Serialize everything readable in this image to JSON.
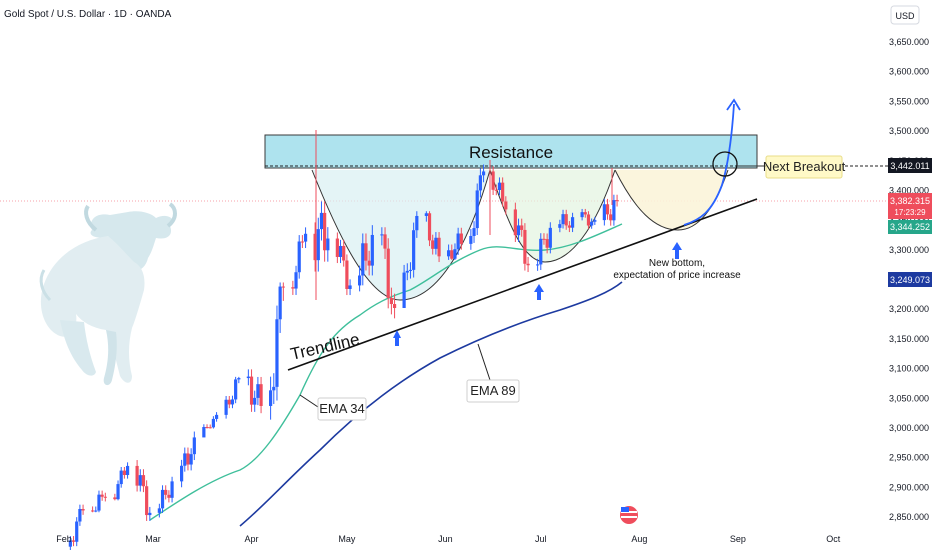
{
  "header": {
    "symbol": "Gold Spot / U.S. Dollar · 1D · OANDA",
    "currency": "USD"
  },
  "colors": {
    "up": "#2962ff",
    "down": "#ef4d5c",
    "ema34": "#3fbf9b",
    "ema89": "#1d3aa0",
    "resistance_fill": "#aee3ee",
    "resistance_stroke": "#3a3a3a",
    "trendline": "#111111",
    "projection": "#2962ff",
    "current_price": "#ef4d5c"
  },
  "chart_data": {
    "type": "line",
    "title": "Gold Spot / U.S. Dollar · 1D · OANDA",
    "xlabel": "",
    "ylabel": "USD",
    "ylim": [
      2830,
      3720
    ],
    "grid": false,
    "x_ticks": [
      "Feb",
      "Mar",
      "Apr",
      "May",
      "Jun",
      "Jul",
      "Aug",
      "Sep",
      "Oct"
    ],
    "y_ticks": [
      2850,
      2900,
      2950,
      3000,
      3050,
      3100,
      3150,
      3200,
      3250,
      3300,
      3350,
      3400,
      3450,
      3500,
      3550,
      3600,
      3650
    ],
    "y_tick_labels": [
      "2,850.000",
      "2,900.000",
      "2,950.000",
      "3,000.000",
      "3,050.000",
      "3,100.000",
      "3,150.000",
      "3,200.000",
      "3,250.000",
      "3,300.000",
      "3,350.000",
      "3,400.000",
      "3,450.000",
      "3,500.000",
      "3,550.000",
      "3,600.000",
      "3,650.000"
    ],
    "candles_weekly_approx": [
      {
        "date": "2025-02-03",
        "open": 2800,
        "high": 2882,
        "low": 2790,
        "close": 2861
      },
      {
        "date": "2025-02-10",
        "open": 2861,
        "high": 2943,
        "low": 2858,
        "close": 2883
      },
      {
        "date": "2025-02-17",
        "open": 2883,
        "high": 2954,
        "low": 2878,
        "close": 2936
      },
      {
        "date": "2025-02-24",
        "open": 2936,
        "high": 2956,
        "low": 2832,
        "close": 2857
      },
      {
        "date": "2025-03-03",
        "open": 2857,
        "high": 2930,
        "low": 2833,
        "close": 2910
      },
      {
        "date": "2025-03-10",
        "open": 2910,
        "high": 3004,
        "low": 2880,
        "close": 2984
      },
      {
        "date": "2025-03-17",
        "open": 2984,
        "high": 3057,
        "low": 2999,
        "close": 3022
      },
      {
        "date": "2025-03-24",
        "open": 3022,
        "high": 3086,
        "low": 3007,
        "close": 3084
      },
      {
        "date": "2025-03-31",
        "open": 3084,
        "high": 3167,
        "low": 3015,
        "close": 3037
      },
      {
        "date": "2025-04-07",
        "open": 3037,
        "high": 3245,
        "low": 2957,
        "close": 3237
      },
      {
        "date": "2025-04-14",
        "open": 3237,
        "high": 3357,
        "low": 3222,
        "close": 3327
      },
      {
        "date": "2025-04-21",
        "open": 3327,
        "high": 3500,
        "low": 3260,
        "close": 3319
      },
      {
        "date": "2025-04-28",
        "open": 3319,
        "high": 3330,
        "low": 3202,
        "close": 3240
      },
      {
        "date": "2025-05-05",
        "open": 3240,
        "high": 3437,
        "low": 3230,
        "close": 3325
      },
      {
        "date": "2025-05-12",
        "open": 3325,
        "high": 3338,
        "low": 3120,
        "close": 3202
      },
      {
        "date": "2025-05-19",
        "open": 3202,
        "high": 3365,
        "low": 3204,
        "close": 3357
      },
      {
        "date": "2025-05-26",
        "open": 3357,
        "high": 3365,
        "low": 3245,
        "close": 3289
      },
      {
        "date": "2025-06-02",
        "open": 3289,
        "high": 3404,
        "low": 3283,
        "close": 3310
      },
      {
        "date": "2025-06-09",
        "open": 3310,
        "high": 3446,
        "low": 3300,
        "close": 3432
      },
      {
        "date": "2025-06-16",
        "open": 3432,
        "high": 3451,
        "low": 3341,
        "close": 3368
      },
      {
        "date": "2025-06-23",
        "open": 3368,
        "high": 3398,
        "low": 3255,
        "close": 3274
      },
      {
        "date": "2025-06-30",
        "open": 3274,
        "high": 3365,
        "low": 3247,
        "close": 3337
      },
      {
        "date": "2025-07-07",
        "open": 3337,
        "high": 3375,
        "low": 3283,
        "close": 3355
      },
      {
        "date": "2025-07-14",
        "open": 3355,
        "high": 3377,
        "low": 3309,
        "close": 3350
      },
      {
        "date": "2025-07-21",
        "open": 3350,
        "high": 3438,
        "low": 3325,
        "close": 3382
      }
    ],
    "series": [
      {
        "name": "EMA 34",
        "values_approx": [
          2850,
          2875,
          2900,
          2920,
          2940,
          2960,
          2990,
          3020,
          3050,
          3090,
          3140,
          3190,
          3220,
          3250,
          3260,
          3270,
          3285,
          3300,
          3320,
          3340,
          3315,
          3305,
          3318,
          3330,
          3344
        ]
      },
      {
        "name": "EMA 89",
        "values_approx": [
          null,
          null,
          null,
          null,
          null,
          2840,
          2860,
          2880,
          2905,
          2930,
          2960,
          2990,
          3020,
          3045,
          3070,
          3095,
          3115,
          3135,
          3160,
          3180,
          3200,
          3215,
          3225,
          3240,
          3249
        ]
      }
    ],
    "price_labels": {
      "resistance": "3,442.011",
      "current": "3,382.315",
      "countdown": "17:23:29",
      "ema34": "3,344.252",
      "ema89": "3,249.073"
    },
    "resistance_zone": [
      3442,
      3497
    ],
    "trendline_points": [
      {
        "date": "2025-05-15",
        "value": 3170
      },
      {
        "date": "2025-08-31",
        "value": 3390
      }
    ],
    "annotations": [
      "Resistance",
      "Next Breakout",
      "Trendline",
      "EMA 34",
      "EMA 89",
      "New bottom,",
      "expectation of price increase"
    ]
  }
}
